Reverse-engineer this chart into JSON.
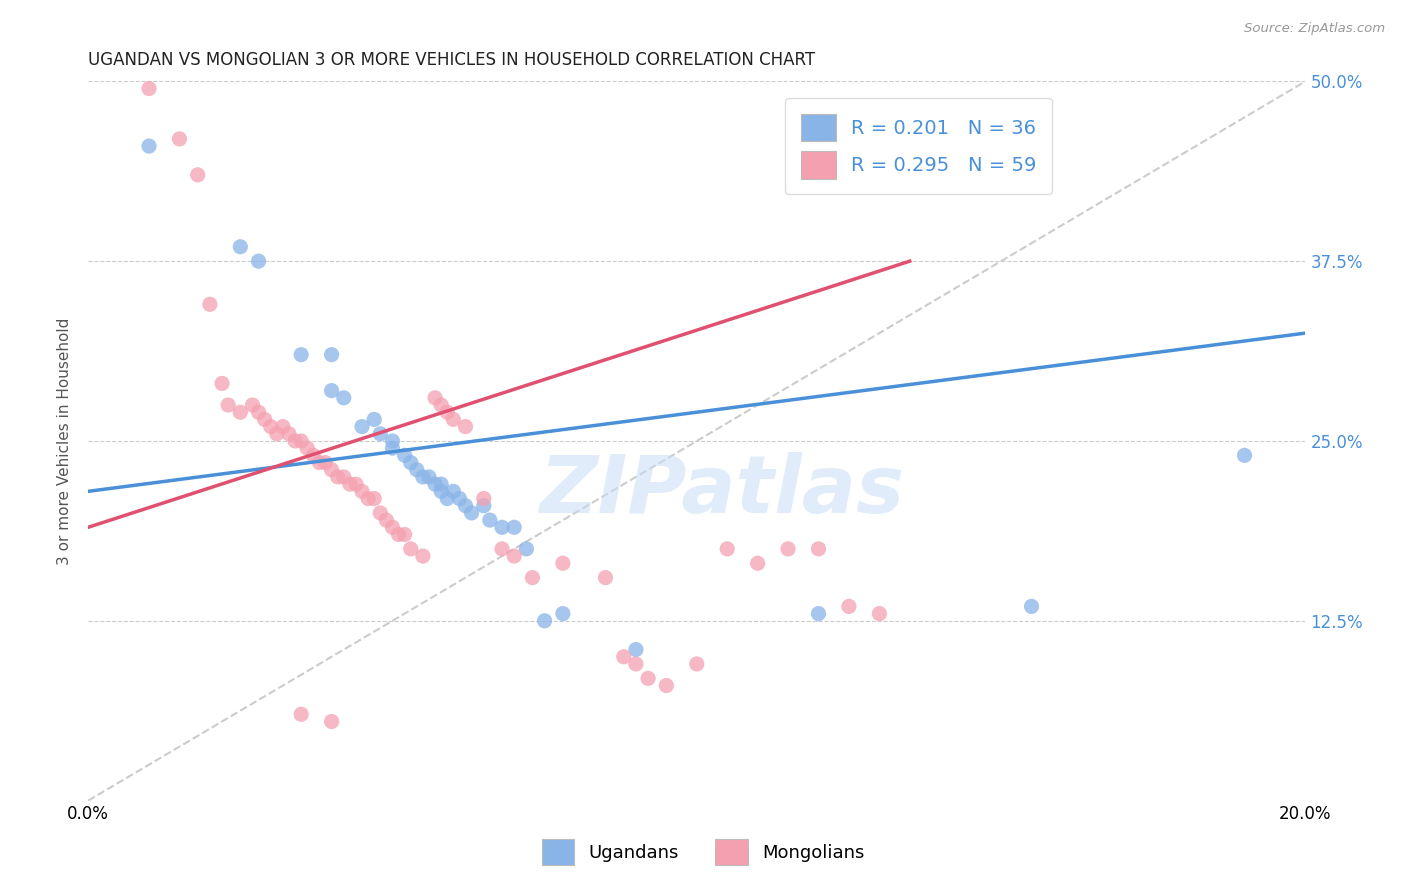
{
  "title": "UGANDAN VS MONGOLIAN 3 OR MORE VEHICLES IN HOUSEHOLD CORRELATION CHART",
  "source": "Source: ZipAtlas.com",
  "ylabel_label": "3 or more Vehicles in Household",
  "x_min": 0.0,
  "x_max": 0.2,
  "y_min": 0.0,
  "y_max": 0.5,
  "x_ticks": [
    0.0,
    0.04,
    0.08,
    0.12,
    0.16,
    0.2
  ],
  "y_ticks": [
    0.0,
    0.125,
    0.25,
    0.375,
    0.5
  ],
  "ugandan_color": "#89b4e8",
  "mongolian_color": "#f4a0b0",
  "ugandan_R": 0.201,
  "ugandan_N": 36,
  "mongolian_R": 0.295,
  "mongolian_N": 59,
  "diagonal_color": "#cccccc",
  "ugandan_line_color": "#4a90d9",
  "mongolian_line_color": "#e05070",
  "watermark": "ZIPatlas",
  "ugandan_line": [
    [
      0.0,
      0.215
    ],
    [
      0.2,
      0.325
    ]
  ],
  "mongolian_line": [
    [
      0.0,
      0.19
    ],
    [
      0.135,
      0.375
    ]
  ],
  "ugandan_scatter": [
    [
      0.01,
      0.455
    ],
    [
      0.025,
      0.385
    ],
    [
      0.028,
      0.375
    ],
    [
      0.035,
      0.31
    ],
    [
      0.04,
      0.285
    ],
    [
      0.04,
      0.31
    ],
    [
      0.042,
      0.28
    ],
    [
      0.045,
      0.26
    ],
    [
      0.047,
      0.265
    ],
    [
      0.048,
      0.255
    ],
    [
      0.05,
      0.25
    ],
    [
      0.05,
      0.245
    ],
    [
      0.052,
      0.24
    ],
    [
      0.053,
      0.235
    ],
    [
      0.054,
      0.23
    ],
    [
      0.055,
      0.225
    ],
    [
      0.056,
      0.225
    ],
    [
      0.057,
      0.22
    ],
    [
      0.058,
      0.22
    ],
    [
      0.058,
      0.215
    ],
    [
      0.059,
      0.21
    ],
    [
      0.06,
      0.215
    ],
    [
      0.061,
      0.21
    ],
    [
      0.062,
      0.205
    ],
    [
      0.063,
      0.2
    ],
    [
      0.065,
      0.205
    ],
    [
      0.066,
      0.195
    ],
    [
      0.068,
      0.19
    ],
    [
      0.07,
      0.19
    ],
    [
      0.072,
      0.175
    ],
    [
      0.075,
      0.125
    ],
    [
      0.078,
      0.13
    ],
    [
      0.09,
      0.105
    ],
    [
      0.12,
      0.13
    ],
    [
      0.155,
      0.135
    ],
    [
      0.19,
      0.24
    ]
  ],
  "mongolian_scatter": [
    [
      0.01,
      0.495
    ],
    [
      0.015,
      0.46
    ],
    [
      0.018,
      0.435
    ],
    [
      0.02,
      0.345
    ],
    [
      0.022,
      0.29
    ],
    [
      0.023,
      0.275
    ],
    [
      0.025,
      0.27
    ],
    [
      0.027,
      0.275
    ],
    [
      0.028,
      0.27
    ],
    [
      0.029,
      0.265
    ],
    [
      0.03,
      0.26
    ],
    [
      0.031,
      0.255
    ],
    [
      0.032,
      0.26
    ],
    [
      0.033,
      0.255
    ],
    [
      0.034,
      0.25
    ],
    [
      0.035,
      0.25
    ],
    [
      0.036,
      0.245
    ],
    [
      0.037,
      0.24
    ],
    [
      0.038,
      0.235
    ],
    [
      0.039,
      0.235
    ],
    [
      0.04,
      0.23
    ],
    [
      0.041,
      0.225
    ],
    [
      0.042,
      0.225
    ],
    [
      0.043,
      0.22
    ],
    [
      0.044,
      0.22
    ],
    [
      0.045,
      0.215
    ],
    [
      0.046,
      0.21
    ],
    [
      0.047,
      0.21
    ],
    [
      0.048,
      0.2
    ],
    [
      0.049,
      0.195
    ],
    [
      0.05,
      0.19
    ],
    [
      0.051,
      0.185
    ],
    [
      0.052,
      0.185
    ],
    [
      0.053,
      0.175
    ],
    [
      0.055,
      0.17
    ],
    [
      0.057,
      0.28
    ],
    [
      0.058,
      0.275
    ],
    [
      0.059,
      0.27
    ],
    [
      0.06,
      0.265
    ],
    [
      0.062,
      0.26
    ],
    [
      0.065,
      0.21
    ],
    [
      0.068,
      0.175
    ],
    [
      0.07,
      0.17
    ],
    [
      0.073,
      0.155
    ],
    [
      0.078,
      0.165
    ],
    [
      0.085,
      0.155
    ],
    [
      0.088,
      0.1
    ],
    [
      0.09,
      0.095
    ],
    [
      0.092,
      0.085
    ],
    [
      0.095,
      0.08
    ],
    [
      0.1,
      0.095
    ],
    [
      0.105,
      0.175
    ],
    [
      0.11,
      0.165
    ],
    [
      0.115,
      0.175
    ],
    [
      0.12,
      0.175
    ],
    [
      0.125,
      0.135
    ],
    [
      0.13,
      0.13
    ],
    [
      0.035,
      0.06
    ],
    [
      0.04,
      0.055
    ]
  ]
}
